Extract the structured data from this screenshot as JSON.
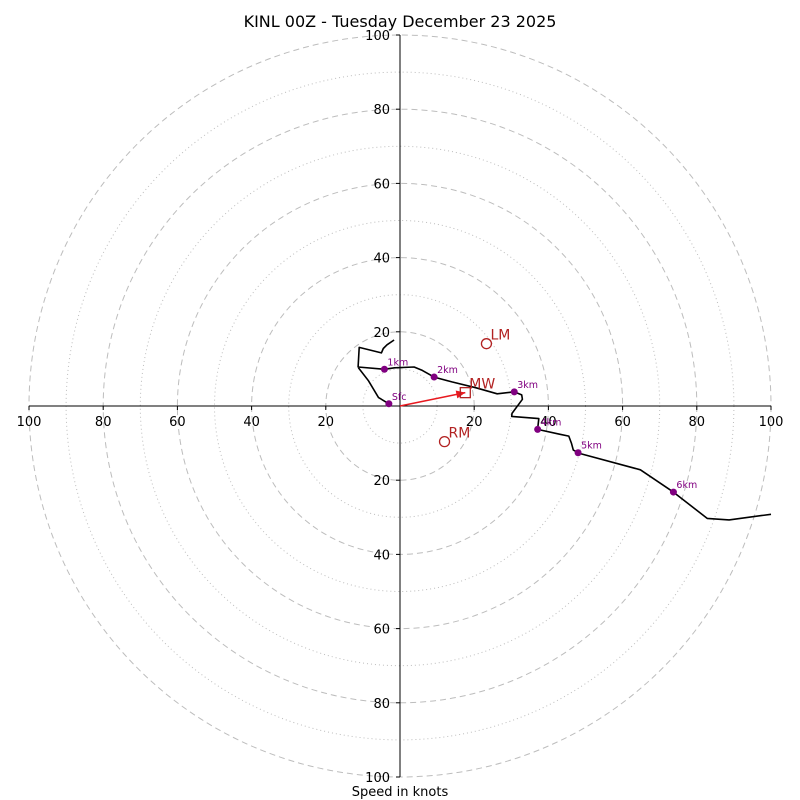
{
  "chart_data": {
    "type": "hodograph",
    "title": "KINL 00Z - Tuesday December 23 2025",
    "xlabel": "Speed in knots",
    "units": "knots",
    "max_speed": 100,
    "ring_major": [
      20,
      40,
      60,
      80,
      100
    ],
    "ring_minor": [
      10,
      30,
      50,
      70,
      90
    ],
    "x_tick_labels": [
      "100",
      "80",
      "60",
      "40",
      "20",
      "20",
      "40",
      "60",
      "80",
      "100"
    ],
    "x_tick_values": [
      -100,
      -80,
      -60,
      -40,
      -20,
      20,
      40,
      60,
      80,
      100
    ],
    "y_tick_labels": [
      "100",
      "80",
      "60",
      "40",
      "20",
      "20",
      "40",
      "60",
      "80",
      "100"
    ],
    "y_tick_values": [
      100,
      80,
      60,
      40,
      20,
      -20,
      -40,
      -60,
      -80,
      -100
    ],
    "hodograph_trace": [
      [
        -1.6,
        17.8
      ],
      [
        -3.5,
        16.5
      ],
      [
        -4.5,
        15.5
      ],
      [
        -5.0,
        14.3
      ],
      [
        -11.0,
        15.8
      ],
      [
        -11.3,
        10.5
      ],
      [
        -4.2,
        9.9
      ],
      [
        -1.5,
        10.3
      ],
      [
        3.8,
        10.5
      ],
      [
        6.0,
        9.6
      ],
      [
        9.2,
        7.8
      ],
      [
        14.0,
        6.5
      ],
      [
        20.5,
        4.9
      ],
      [
        26.2,
        3.3
      ],
      [
        30.8,
        3.8
      ],
      [
        32.8,
        3.0
      ],
      [
        33.0,
        1.8
      ],
      [
        30.2,
        -2.0
      ],
      [
        30.1,
        -2.8
      ],
      [
        37.4,
        -3.4
      ],
      [
        37.1,
        -6.3
      ],
      [
        43.0,
        -7.6
      ],
      [
        45.5,
        -8.1
      ],
      [
        46.2,
        -10.0
      ],
      [
        46.7,
        -11.9
      ],
      [
        48.5,
        -12.8
      ],
      [
        64.8,
        -17.2
      ],
      [
        73.7,
        -23.2
      ],
      [
        82.8,
        -30.3
      ],
      [
        88.7,
        -30.7
      ],
      [
        100.0,
        -29.2
      ]
    ],
    "height_markers": [
      {
        "label": "Sfc",
        "u": -3.0,
        "v": 0.6
      },
      {
        "label": "1km",
        "u": -4.2,
        "v": 9.9
      },
      {
        "label": "2km",
        "u": 9.2,
        "v": 7.8
      },
      {
        "label": "3km",
        "u": 30.8,
        "v": 3.8
      },
      {
        "label": "4km",
        "u": 37.1,
        "v": -6.3
      },
      {
        "label": "5km",
        "u": 48.0,
        "v": -12.6
      },
      {
        "label": "6km",
        "u": 73.7,
        "v": -23.2
      }
    ],
    "storm_motions": [
      {
        "label": "LM",
        "u": 23.3,
        "v": 16.8,
        "marker": "circle"
      },
      {
        "label": "RM",
        "u": 12.0,
        "v": -9.6,
        "marker": "circle"
      },
      {
        "label": "MW",
        "u": 17.6,
        "v": 3.6,
        "marker": "square"
      }
    ],
    "mean_wind_vector": {
      "u": 17.6,
      "v": 3.6
    }
  },
  "colors": {
    "trace": "#000000",
    "height_marker": "#800080",
    "storm_motion": "#b22222",
    "vector": "#e8191f",
    "grid": "#bdbdbd",
    "axes": "#000000"
  }
}
